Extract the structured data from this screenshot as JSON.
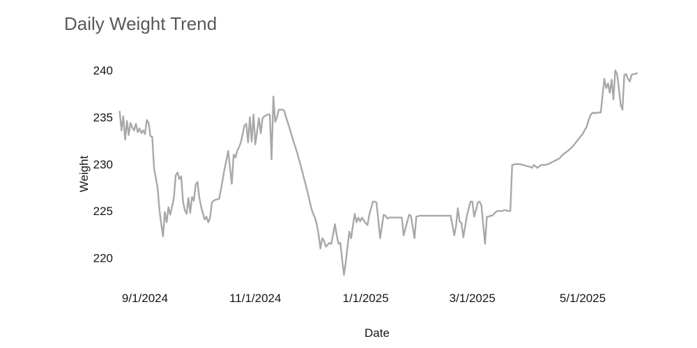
{
  "chart_data": {
    "type": "line",
    "title": "Daily Weight Trend",
    "xlabel": "Date",
    "ylabel": "Weight",
    "grid": false,
    "legend": "none",
    "background_color": "#ffffff",
    "line_color": "#a8a8a8",
    "title_color": "#57585a",
    "tick_color": "#161616",
    "y_ticks": [
      220,
      225,
      230,
      235,
      240
    ],
    "x_ticks": [
      "9/1/2024",
      "11/1/2024",
      "1/1/2025",
      "3/1/2025",
      "5/1/2025"
    ],
    "x_range": [
      "8/18/2024",
      "5/31/2025"
    ],
    "y_range": [
      218,
      241
    ],
    "series": [
      {
        "name": "Weight",
        "points": [
          [
            "8/18/2024",
            235.6
          ],
          [
            "8/19/2024",
            233.6
          ],
          [
            "8/20/2024",
            235.1
          ],
          [
            "8/21/2024",
            232.6
          ],
          [
            "8/22/2024",
            234.6
          ],
          [
            "8/23/2024",
            233.1
          ],
          [
            "8/24/2024",
            234.4
          ],
          [
            "8/25/2024",
            233.9
          ],
          [
            "8/26/2024",
            233.6
          ],
          [
            "8/27/2024",
            234.3
          ],
          [
            "8/28/2024",
            233.4
          ],
          [
            "8/29/2024",
            233.8
          ],
          [
            "8/30/2024",
            233.3
          ],
          [
            "8/31/2024",
            233.6
          ],
          [
            "9/1/2024",
            233.2
          ],
          [
            "9/2/2024",
            234.7
          ],
          [
            "9/3/2024",
            234.4
          ],
          [
            "9/4/2024",
            233.0
          ],
          [
            "9/5/2024",
            232.9
          ],
          [
            "9/6/2024",
            229.6
          ],
          [
            "9/7/2024",
            228.5
          ],
          [
            "9/8/2024",
            227.4
          ],
          [
            "9/9/2024",
            225.1
          ],
          [
            "9/10/2024",
            223.6
          ],
          [
            "9/11/2024",
            222.3
          ],
          [
            "9/12/2024",
            224.9
          ],
          [
            "9/13/2024",
            223.8
          ],
          [
            "9/14/2024",
            225.4
          ],
          [
            "9/15/2024",
            224.6
          ],
          [
            "9/16/2024",
            225.5
          ],
          [
            "9/17/2024",
            226.4
          ],
          [
            "9/18/2024",
            228.8
          ],
          [
            "9/19/2024",
            229.1
          ],
          [
            "9/20/2024",
            228.4
          ],
          [
            "9/21/2024",
            228.7
          ],
          [
            "9/22/2024",
            226.1
          ],
          [
            "9/23/2024",
            225.1
          ],
          [
            "9/24/2024",
            224.7
          ],
          [
            "9/25/2024",
            226.4
          ],
          [
            "9/26/2024",
            224.8
          ],
          [
            "9/27/2024",
            226.5
          ],
          [
            "9/28/2024",
            226.1
          ],
          [
            "9/29/2024",
            227.8
          ],
          [
            "9/30/2024",
            228.1
          ],
          [
            "10/1/2024",
            226.5
          ],
          [
            "10/2/2024",
            225.5
          ],
          [
            "10/3/2024",
            224.8
          ],
          [
            "10/4/2024",
            224.1
          ],
          [
            "10/5/2024",
            224.4
          ],
          [
            "10/6/2024",
            223.8
          ],
          [
            "10/7/2024",
            224.3
          ],
          [
            "10/8/2024",
            225.9
          ],
          [
            "10/9/2024",
            226.1
          ],
          [
            "10/10/2024",
            226.2
          ],
          [
            "10/12/2024",
            226.3
          ],
          [
            "10/13/2024",
            227.3
          ],
          [
            "10/14/2024",
            228.4
          ],
          [
            "10/15/2024",
            229.5
          ],
          [
            "10/16/2024",
            230.4
          ],
          [
            "10/17/2024",
            231.4
          ],
          [
            "10/18/2024",
            229.6
          ],
          [
            "10/19/2024",
            227.9
          ],
          [
            "10/20/2024",
            231.0
          ],
          [
            "10/21/2024",
            230.7
          ],
          [
            "10/22/2024",
            231.4
          ],
          [
            "10/23/2024",
            231.8
          ],
          [
            "10/24/2024",
            232.3
          ],
          [
            "10/25/2024",
            233.2
          ],
          [
            "10/26/2024",
            234.1
          ],
          [
            "10/27/2024",
            234.3
          ],
          [
            "10/28/2024",
            232.3
          ],
          [
            "10/29/2024",
            235.0
          ],
          [
            "10/30/2024",
            232.4
          ],
          [
            "10/31/2024",
            235.3
          ],
          [
            "11/1/2024",
            232.1
          ],
          [
            "11/2/2024",
            233.5
          ],
          [
            "11/3/2024",
            234.9
          ],
          [
            "11/4/2024",
            233.3
          ],
          [
            "11/5/2024",
            234.9
          ],
          [
            "11/6/2024",
            235.1
          ],
          [
            "11/7/2024",
            235.2
          ],
          [
            "11/8/2024",
            235.3
          ],
          [
            "11/9/2024",
            235.3
          ],
          [
            "11/10/2024",
            230.5
          ],
          [
            "11/11/2024",
            237.2
          ],
          [
            "11/12/2024",
            234.5
          ],
          [
            "11/13/2024",
            235.0
          ],
          [
            "11/14/2024",
            235.8
          ],
          [
            "11/15/2024",
            235.8
          ],
          [
            "11/16/2024",
            235.8
          ],
          [
            "11/17/2024",
            235.7
          ],
          [
            "11/18/2024",
            235.0
          ],
          [
            "11/19/2024",
            234.4
          ],
          [
            "11/20/2024",
            233.8
          ],
          [
            "11/21/2024",
            233.1
          ],
          [
            "11/22/2024",
            232.5
          ],
          [
            "11/23/2024",
            231.9
          ],
          [
            "11/24/2024",
            231.3
          ],
          [
            "11/25/2024",
            230.6
          ],
          [
            "11/26/2024",
            229.9
          ],
          [
            "11/27/2024",
            229.2
          ],
          [
            "11/28/2024",
            228.4
          ],
          [
            "11/29/2024",
            227.7
          ],
          [
            "11/30/2024",
            226.9
          ],
          [
            "12/1/2024",
            226.1
          ],
          [
            "12/2/2024",
            225.3
          ],
          [
            "12/3/2024",
            224.7
          ],
          [
            "12/4/2024",
            224.3
          ],
          [
            "12/5/2024",
            223.6
          ],
          [
            "12/6/2024",
            222.5
          ],
          [
            "12/7/2024",
            221.0
          ],
          [
            "12/8/2024",
            222.1
          ],
          [
            "12/9/2024",
            221.8
          ],
          [
            "12/10/2024",
            221.2
          ],
          [
            "12/11/2024",
            221.4
          ],
          [
            "12/12/2024",
            221.6
          ],
          [
            "12/13/2024",
            221.5
          ],
          [
            "12/14/2024",
            222.5
          ],
          [
            "12/15/2024",
            223.6
          ],
          [
            "12/16/2024",
            222.4
          ],
          [
            "12/17/2024",
            221.5
          ],
          [
            "12/18/2024",
            221.6
          ],
          [
            "12/19/2024",
            219.8
          ],
          [
            "12/20/2024",
            218.2
          ],
          [
            "12/21/2024",
            219.5
          ],
          [
            "12/22/2024",
            221.2
          ],
          [
            "12/23/2024",
            222.8
          ],
          [
            "12/24/2024",
            222.1
          ],
          [
            "12/25/2024",
            223.5
          ],
          [
            "12/26/2024",
            224.7
          ],
          [
            "12/27/2024",
            223.8
          ],
          [
            "12/28/2024",
            224.3
          ],
          [
            "12/29/2024",
            223.9
          ],
          [
            "12/30/2024",
            224.3
          ],
          [
            "12/31/2024",
            224.0
          ],
          [
            "1/1/2025",
            223.7
          ],
          [
            "1/2/2025",
            223.5
          ],
          [
            "1/3/2025",
            224.6
          ],
          [
            "1/4/2025",
            225.3
          ],
          [
            "1/5/2025",
            226.0
          ],
          [
            "1/6/2025",
            226.0
          ],
          [
            "1/7/2025",
            225.9
          ],
          [
            "1/8/2025",
            224.0
          ],
          [
            "1/9/2025",
            222.1
          ],
          [
            "1/10/2025",
            223.4
          ],
          [
            "1/11/2025",
            224.6
          ],
          [
            "1/12/2025",
            224.5
          ],
          [
            "1/13/2025",
            224.2
          ],
          [
            "1/14/2025",
            224.3
          ],
          [
            "1/16/2025",
            224.3
          ],
          [
            "1/18/2025",
            224.3
          ],
          [
            "1/20/2025",
            224.3
          ],
          [
            "1/21/2025",
            224.3
          ],
          [
            "1/22/2025",
            222.4
          ],
          [
            "1/25/2025",
            224.6
          ],
          [
            "1/26/2025",
            224.5
          ],
          [
            "1/28/2025",
            222.1
          ],
          [
            "1/29/2025",
            224.4
          ],
          [
            "1/31/2025",
            224.5
          ],
          [
            "2/3/2025",
            224.5
          ],
          [
            "2/6/2025",
            224.5
          ],
          [
            "2/9/2025",
            224.5
          ],
          [
            "2/12/2025",
            224.5
          ],
          [
            "2/15/2025",
            224.5
          ],
          [
            "2/17/2025",
            224.5
          ],
          [
            "2/19/2025",
            222.4
          ],
          [
            "2/20/2025",
            223.4
          ],
          [
            "2/21/2025",
            225.3
          ],
          [
            "2/22/2025",
            223.9
          ],
          [
            "2/23/2025",
            223.7
          ],
          [
            "2/24/2025",
            222.2
          ],
          [
            "2/25/2025",
            223.3
          ],
          [
            "2/26/2025",
            224.5
          ],
          [
            "2/27/2025",
            225.3
          ],
          [
            "2/28/2025",
            226.0
          ],
          [
            "3/1/2025",
            226.0
          ],
          [
            "3/2/2025",
            224.4
          ],
          [
            "3/3/2025",
            225.1
          ],
          [
            "3/4/2025",
            225.9
          ],
          [
            "3/5/2025",
            226.0
          ],
          [
            "3/6/2025",
            225.6
          ],
          [
            "3/7/2025",
            223.5
          ],
          [
            "3/8/2025",
            221.5
          ],
          [
            "3/9/2025",
            224.4
          ],
          [
            "3/10/2025",
            224.4
          ],
          [
            "3/11/2025",
            224.5
          ],
          [
            "3/12/2025",
            224.5
          ],
          [
            "3/13/2025",
            224.7
          ],
          [
            "3/14/2025",
            224.9
          ],
          [
            "3/15/2025",
            225.0
          ],
          [
            "3/17/2025",
            225.0
          ],
          [
            "3/19/2025",
            225.1
          ],
          [
            "3/21/2025",
            225.0
          ],
          [
            "3/22/2025",
            225.0
          ],
          [
            "3/23/2025",
            229.9
          ],
          [
            "3/25/2025",
            230.0
          ],
          [
            "3/27/2025",
            230.0
          ],
          [
            "3/29/2025",
            229.9
          ],
          [
            "3/31/2025",
            229.8
          ],
          [
            "4/2/2025",
            229.7
          ],
          [
            "4/3/2025",
            229.6
          ],
          [
            "4/4/2025",
            229.9
          ],
          [
            "4/6/2025",
            229.6
          ],
          [
            "4/8/2025",
            229.9
          ],
          [
            "4/10/2025",
            229.9
          ],
          [
            "4/12/2025",
            230.0
          ],
          [
            "4/14/2025",
            230.2
          ],
          [
            "4/16/2025",
            230.4
          ],
          [
            "4/18/2025",
            230.6
          ],
          [
            "4/20/2025",
            231.0
          ],
          [
            "4/22/2025",
            231.3
          ],
          [
            "4/24/2025",
            231.6
          ],
          [
            "4/26/2025",
            232.0
          ],
          [
            "4/28/2025",
            232.5
          ],
          [
            "4/30/2025",
            233.0
          ],
          [
            "5/1/2025",
            233.2
          ],
          [
            "5/2/2025",
            233.6
          ],
          [
            "5/3/2025",
            233.9
          ],
          [
            "5/4/2025",
            234.5
          ],
          [
            "5/5/2025",
            235.1
          ],
          [
            "5/6/2025",
            235.4
          ],
          [
            "5/7/2025",
            235.5
          ],
          [
            "5/8/2025",
            235.4
          ],
          [
            "5/9/2025",
            235.5
          ],
          [
            "5/10/2025",
            235.5
          ],
          [
            "5/11/2025",
            235.5
          ],
          [
            "5/12/2025",
            237.3
          ],
          [
            "5/13/2025",
            239.1
          ],
          [
            "5/14/2025",
            238.1
          ],
          [
            "5/15/2025",
            238.6
          ],
          [
            "5/16/2025",
            237.6
          ],
          [
            "5/17/2025",
            239.0
          ],
          [
            "5/18/2025",
            236.9
          ],
          [
            "5/19/2025",
            240.0
          ],
          [
            "5/20/2025",
            239.6
          ],
          [
            "5/21/2025",
            238.1
          ],
          [
            "5/22/2025",
            236.3
          ],
          [
            "5/23/2025",
            235.8
          ],
          [
            "5/24/2025",
            239.5
          ],
          [
            "5/25/2025",
            239.6
          ],
          [
            "5/26/2025",
            239.1
          ],
          [
            "5/27/2025",
            238.8
          ],
          [
            "5/28/2025",
            239.5
          ],
          [
            "5/29/2025",
            239.6
          ],
          [
            "5/30/2025",
            239.6
          ],
          [
            "5/31/2025",
            239.7
          ]
        ]
      }
    ]
  }
}
